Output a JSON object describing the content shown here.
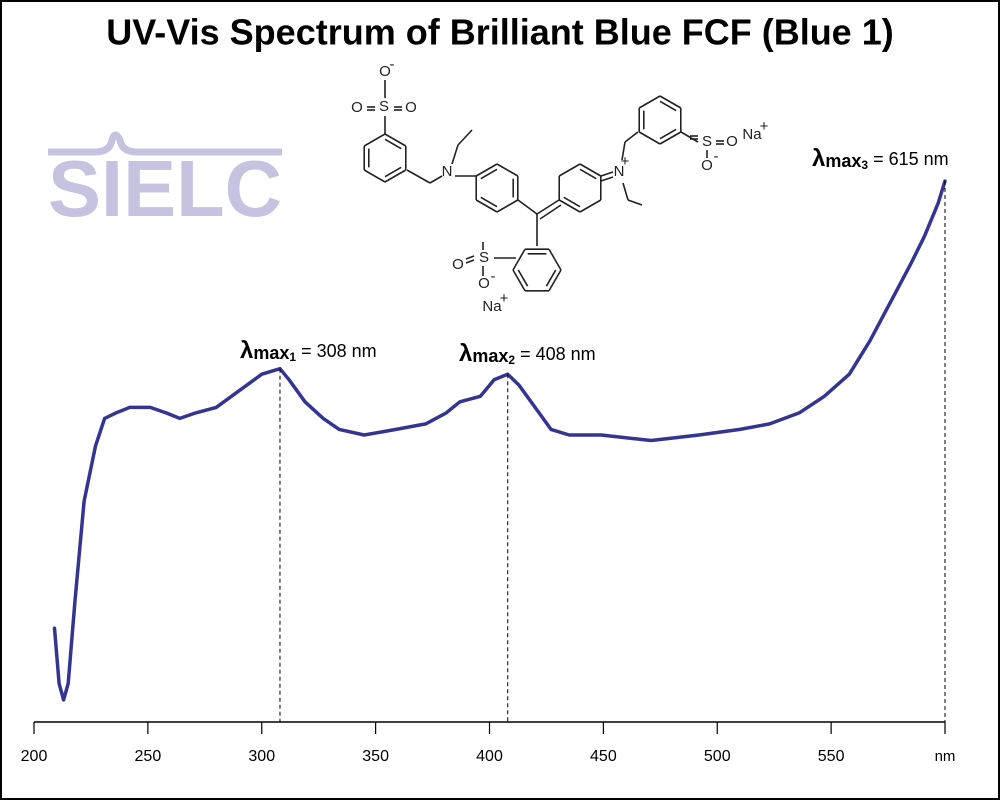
{
  "chart_data": {
    "type": "line",
    "title": "UV-Vis Spectrum of Brilliant Blue FCF (Blue 1)",
    "logo": "SIELC",
    "x": [
      209,
      211,
      213,
      215,
      218,
      222,
      227,
      231,
      236,
      242,
      251,
      258,
      264,
      271,
      280,
      290,
      300,
      308,
      312,
      319,
      327,
      334,
      345,
      359,
      372,
      381,
      387,
      396,
      402,
      408,
      413,
      420,
      427,
      435,
      449,
      471,
      492,
      510,
      523,
      536,
      547,
      558,
      567,
      576,
      585,
      591,
      597,
      600
    ],
    "series": [
      {
        "color": "#343493",
        "values": [
          0.17,
          0.07,
          0.04,
          0.07,
          0.22,
          0.4,
          0.5,
          0.55,
          0.56,
          0.57,
          0.57,
          0.56,
          0.55,
          0.56,
          0.57,
          0.6,
          0.63,
          0.64,
          0.62,
          0.58,
          0.55,
          0.53,
          0.52,
          0.53,
          0.54,
          0.56,
          0.58,
          0.59,
          0.62,
          0.63,
          0.61,
          0.57,
          0.53,
          0.52,
          0.52,
          0.51,
          0.52,
          0.53,
          0.54,
          0.56,
          0.59,
          0.63,
          0.69,
          0.76,
          0.83,
          0.88,
          0.94,
          0.98
        ]
      }
    ],
    "xlim": [
      200,
      600
    ],
    "ylim": [
      0,
      1
    ],
    "xticks": [
      200,
      250,
      300,
      350,
      400,
      450,
      500,
      550,
      {
        "value": 600,
        "label": "nm"
      }
    ],
    "annotations": [
      {
        "symbol": "λ",
        "label": "max",
        "sub": "1",
        "text": " = 308 nm",
        "x": 308
      },
      {
        "symbol": "λ",
        "label": "max",
        "sub": "2",
        "text": " = 408 nm",
        "x": 408
      },
      {
        "symbol": "λ",
        "label": "max",
        "sub": "3",
        "text": " = 615 nm"
      }
    ],
    "structure_atoms": [
      "O",
      "-",
      "S",
      "O",
      "O",
      "N",
      "N",
      "+",
      "S",
      "O",
      "O",
      "-",
      "Na",
      "+",
      "S",
      "O",
      "O",
      "-",
      "Na",
      "+"
    ]
  }
}
